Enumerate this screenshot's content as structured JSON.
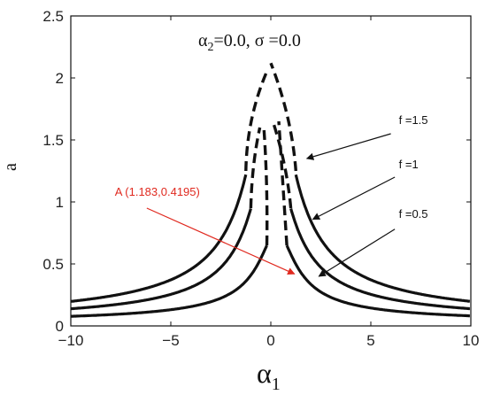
{
  "chart_data": {
    "type": "line",
    "title_alpha": "α",
    "title_alpha_sub": "2",
    "title_rest": "=0.0, σ =0.0",
    "xlabel": "α",
    "xlabel_sub": "1",
    "ylabel": "a",
    "xlim": [
      -10,
      10
    ],
    "ylim": [
      0,
      2.5
    ],
    "xticks": [
      {
        "v": -10,
        "label": "−10"
      },
      {
        "v": -5,
        "label": "−5"
      },
      {
        "v": 0,
        "label": "0"
      },
      {
        "v": 5,
        "label": "5"
      },
      {
        "v": 10,
        "label": "10"
      }
    ],
    "yticks": [
      {
        "v": 0,
        "label": "0"
      },
      {
        "v": 0.5,
        "label": "0.5"
      },
      {
        "v": 1,
        "label": "1"
      },
      {
        "v": 1.5,
        "label": "1.5"
      },
      {
        "v": 2,
        "label": "2"
      },
      {
        "v": 2.5,
        "label": "2.5"
      }
    ],
    "grid": false,
    "series": [
      {
        "name": "f =0.5",
        "f": 0.5,
        "peak_x": 0.3,
        "dash_top": 1.65
      },
      {
        "name": "f =1",
        "f": 1.0,
        "peak_x": 0.0,
        "dash_top": 1.65
      },
      {
        "name": "f =1.5",
        "f": 1.5,
        "peak_x": 0.0,
        "dash_top": 2.12
      }
    ],
    "annotations": [
      {
        "label": "f =1.5",
        "color": "#111111",
        "text_x": 6.4,
        "text_y": 1.63,
        "tail_x": 6.0,
        "tail_y": 1.55,
        "head_x": 1.8,
        "head_y": 1.35
      },
      {
        "label": "f =1",
        "color": "#111111",
        "text_x": 6.4,
        "text_y": 1.27,
        "tail_x": 6.2,
        "tail_y": 1.2,
        "head_x": 2.1,
        "head_y": 0.86
      },
      {
        "label": "f =0.5",
        "color": "#111111",
        "text_x": 6.4,
        "text_y": 0.87,
        "tail_x": 6.2,
        "tail_y": 0.78,
        "head_x": 2.4,
        "head_y": 0.4
      },
      {
        "label": "A (1.183,0.4195)",
        "color": "#e0291f",
        "text_x": -7.8,
        "text_y": 1.05,
        "tail_x": -6.2,
        "tail_y": 0.95,
        "head_x": 1.183,
        "head_y": 0.4195
      }
    ]
  }
}
